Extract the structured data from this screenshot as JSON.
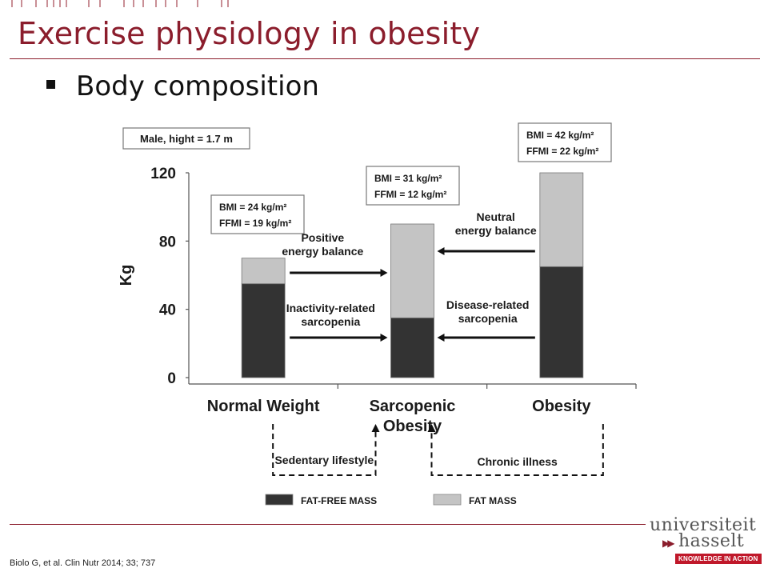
{
  "slide": {
    "title": "Exercise physiology in obesity",
    "bullet": "Body composition",
    "citation": "Biolo G, et al. Clin Nutr 2014; 33; 737",
    "accent_color": "#8b1d2c"
  },
  "logo": {
    "line1": "universiteit",
    "line2": "hasselt",
    "tagline": "KNOWLEDGE IN ACTION"
  },
  "chart_data": {
    "type": "bar",
    "stacked": true,
    "ylabel": "Kg",
    "ylim": [
      0,
      120
    ],
    "yticks": [
      0,
      40,
      80,
      120
    ],
    "categories": [
      "Normal Weight",
      "Sarcopenic Obesity",
      "Obesity"
    ],
    "category_lines": [
      [
        "Normal Weight"
      ],
      [
        "Sarcopenic",
        "Obesity"
      ],
      [
        "Obesity"
      ]
    ],
    "series": [
      {
        "name": "FAT-FREE MASS",
        "color": "#333333",
        "values": [
          55,
          35,
          65
        ]
      },
      {
        "name": "FAT MASS",
        "color": "#c4c4c4",
        "values": [
          15,
          55,
          55
        ]
      }
    ],
    "header_box": "Male, hight = 1.7 m",
    "bar_annotations": [
      [
        "BMI = 24 kg/m²",
        "FFMI = 19 kg/m²"
      ],
      [
        "BMI = 31 kg/m²",
        "FFMI = 12 kg/m²"
      ],
      [
        "BMI = 42 kg/m²",
        "FFMI = 22 kg/m²"
      ]
    ],
    "arrows": [
      {
        "lines": [
          "Positive",
          "energy balance"
        ],
        "direction": "right"
      },
      {
        "lines": [
          "Inactivity-related",
          "sarcopenia"
        ],
        "direction": "right"
      },
      {
        "lines": [
          "Neutral",
          "energy balance"
        ],
        "direction": "left"
      },
      {
        "lines": [
          "Disease-related",
          "sarcopenia"
        ],
        "direction": "left"
      }
    ],
    "bottom_labels": [
      "Sedentary lifestyle",
      "Chronic illness"
    ],
    "legend_placement": "bottom"
  }
}
